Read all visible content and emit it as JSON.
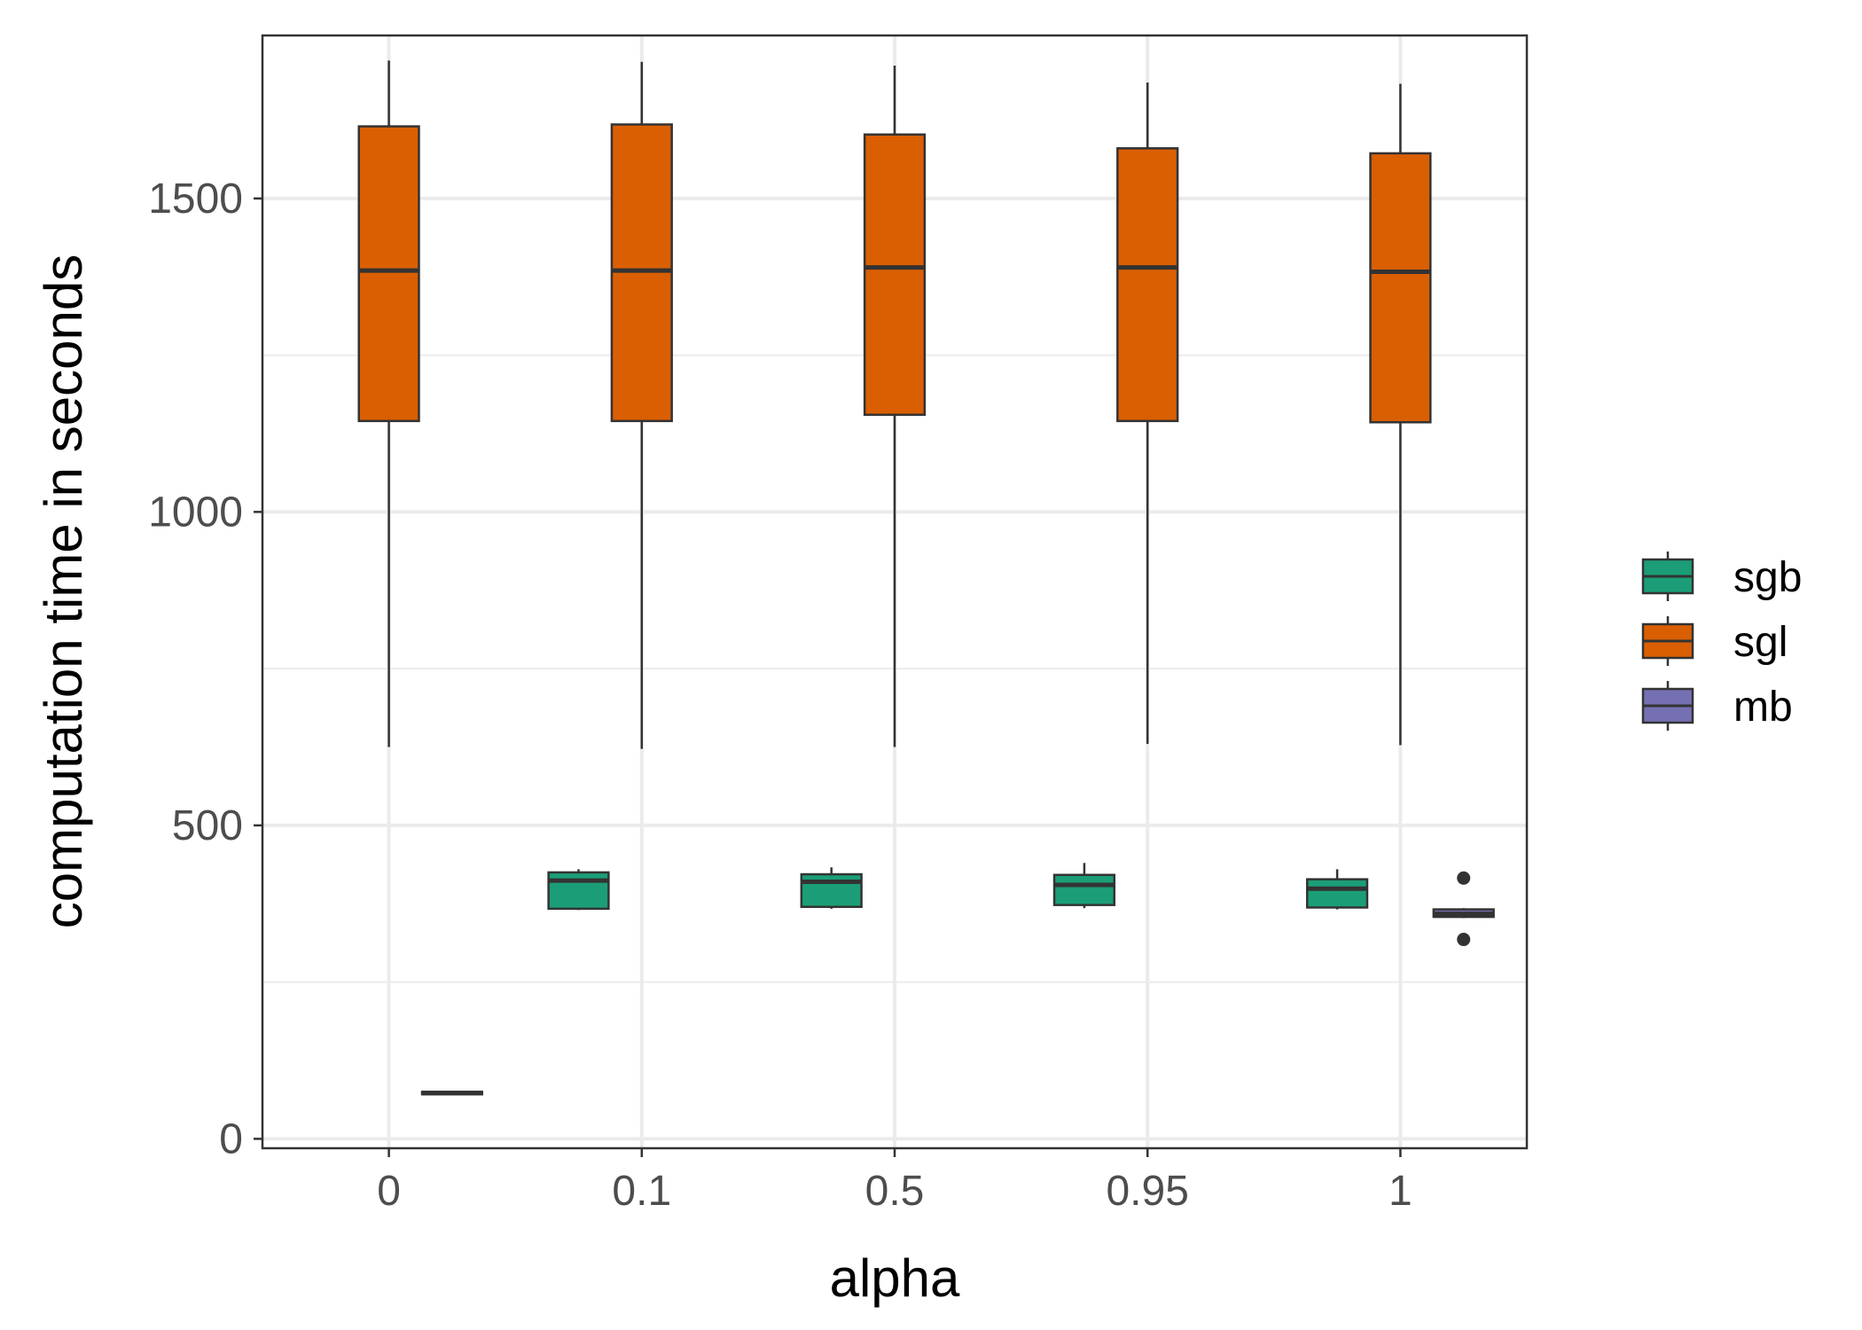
{
  "chart_data": {
    "type": "boxplot",
    "title": "",
    "xlabel": "alpha",
    "ylabel": "computation time in seconds",
    "categories": [
      "0",
      "0.1",
      "0.5",
      "0.95",
      "1"
    ],
    "yticks": [
      0,
      500,
      1000,
      1500
    ],
    "ylim": [
      -15,
      1760
    ],
    "grid": true,
    "legend_position": "right",
    "series": [
      {
        "name": "sgb",
        "color": "#1b9e77",
        "boxes": [
          null,
          {
            "whisker_low": 365,
            "q1": 367,
            "median": 412,
            "q3": 425,
            "whisker_high": 430,
            "outliers": []
          },
          {
            "whisker_low": 367,
            "q1": 370,
            "median": 410,
            "q3": 422,
            "whisker_high": 433,
            "outliers": []
          },
          {
            "whisker_low": 368,
            "q1": 373,
            "median": 405,
            "q3": 421,
            "whisker_high": 440,
            "outliers": []
          },
          {
            "whisker_low": 366,
            "q1": 369,
            "median": 399,
            "q3": 414,
            "whisker_high": 430,
            "outliers": []
          }
        ]
      },
      {
        "name": "sgl",
        "color": "#d95f02",
        "boxes": [
          {
            "whisker_low": 625,
            "q1": 1145,
            "median": 1385,
            "q3": 1615,
            "whisker_high": 1720,
            "outliers": []
          },
          {
            "whisker_low": 622,
            "q1": 1145,
            "median": 1385,
            "q3": 1618,
            "whisker_high": 1718,
            "outliers": []
          },
          {
            "whisker_low": 625,
            "q1": 1155,
            "median": 1390,
            "q3": 1602,
            "whisker_high": 1712,
            "outliers": []
          },
          {
            "whisker_low": 630,
            "q1": 1145,
            "median": 1390,
            "q3": 1580,
            "whisker_high": 1685,
            "outliers": []
          },
          {
            "whisker_low": 628,
            "q1": 1143,
            "median": 1383,
            "q3": 1572,
            "whisker_high": 1683,
            "outliers": []
          }
        ]
      },
      {
        "name": "mb",
        "color": "#7570b3",
        "boxes": [
          {
            "whisker_low": 71,
            "q1": 71,
            "median": 73,
            "q3": 75,
            "whisker_high": 75,
            "outliers": []
          },
          null,
          null,
          null,
          {
            "whisker_low": 352,
            "q1": 354,
            "median": 359,
            "q3": 366,
            "whisker_high": 368,
            "outliers": [
              318,
              416
            ]
          }
        ]
      }
    ]
  }
}
